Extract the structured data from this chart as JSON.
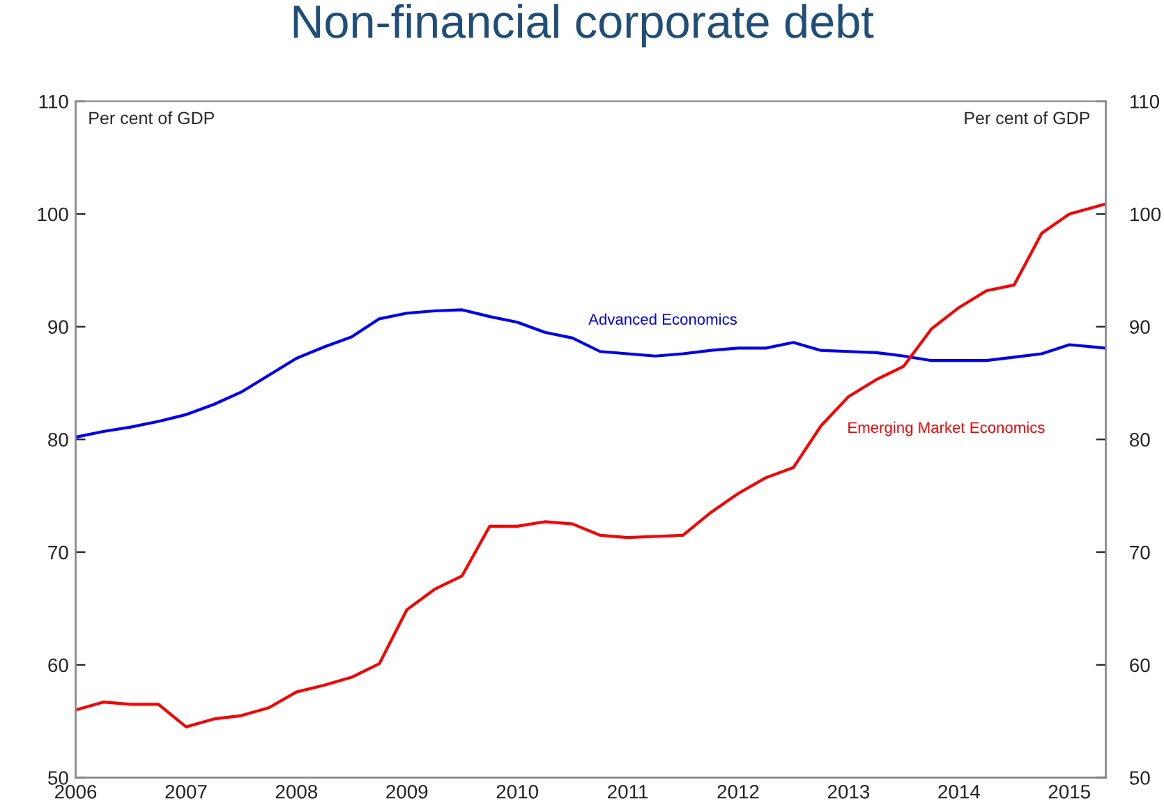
{
  "chart_data": {
    "type": "line",
    "title": "Non-financial corporate debt",
    "ylabel": "Per cent of GDP",
    "y2label": "Per cent of GDP",
    "x": [
      2006.0,
      2006.25,
      2006.5,
      2006.75,
      2007.0,
      2007.25,
      2007.5,
      2007.75,
      2008.0,
      2008.25,
      2008.5,
      2008.75,
      2009.0,
      2009.25,
      2009.5,
      2009.75,
      2010.0,
      2010.25,
      2010.5,
      2010.75,
      2011.0,
      2011.25,
      2011.5,
      2011.75,
      2012.0,
      2012.25,
      2012.5,
      2012.75,
      2013.0,
      2013.25,
      2013.5,
      2013.75,
      2014.0,
      2014.25,
      2014.5,
      2014.75,
      2015.0,
      2015.33
    ],
    "series": [
      {
        "name": "Advanced Economics",
        "color": "#0000ff",
        "values": [
          80.2,
          80.7,
          81.1,
          81.6,
          82.2,
          83.1,
          84.2,
          85.7,
          87.2,
          88.2,
          89.1,
          90.7,
          91.2,
          91.4,
          91.5,
          90.9,
          90.4,
          89.5,
          89.0,
          87.8,
          87.6,
          87.4,
          87.6,
          87.9,
          88.1,
          88.1,
          88.6,
          87.9,
          87.8,
          87.7,
          87.4,
          87.0,
          87.0,
          87.0,
          87.3,
          87.6,
          88.4,
          88.1
        ]
      },
      {
        "name": "Emerging Market Economics",
        "color": "#ff0000",
        "values": [
          56.0,
          56.7,
          56.5,
          56.5,
          54.5,
          55.2,
          55.5,
          56.2,
          57.6,
          58.2,
          58.9,
          60.1,
          64.9,
          66.7,
          67.9,
          72.3,
          72.3,
          72.7,
          72.5,
          71.5,
          71.3,
          71.4,
          71.5,
          73.5,
          75.2,
          76.6,
          77.5,
          81.2,
          83.8,
          85.3,
          86.5,
          89.8,
          91.7,
          93.2,
          93.7,
          98.3,
          100.0,
          100.9
        ]
      }
    ],
    "xlim": [
      2006,
      2015.33
    ],
    "xticks": [
      2006,
      2007,
      2008,
      2009,
      2010,
      2011,
      2012,
      2013,
      2014,
      2015
    ],
    "ylim": [
      50,
      110
    ],
    "yticks": [
      50,
      60,
      70,
      80,
      90,
      100,
      110
    ],
    "y2lim": [
      50,
      110
    ],
    "y2ticks": [
      50,
      60,
      70,
      80,
      90,
      100,
      110
    ],
    "grid": false,
    "legend": false,
    "marker": "none",
    "line_style": "solid"
  }
}
